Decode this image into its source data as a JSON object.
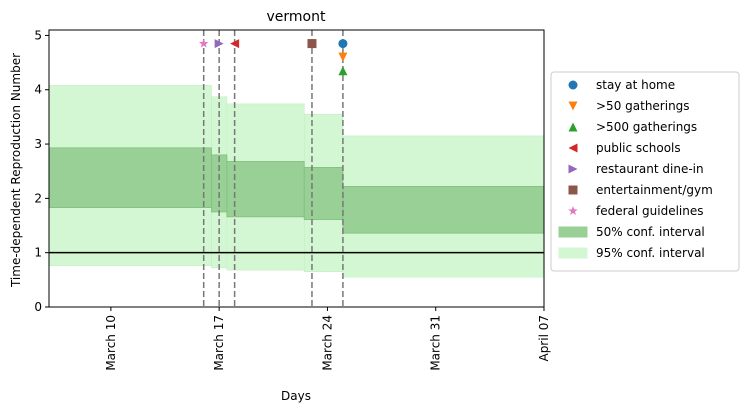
{
  "chart_data": {
    "type": "area",
    "title": "vermont",
    "xlabel": "Days",
    "ylabel": "Time-dependent Reproduction Number",
    "x_ticks": [
      "2020-03-10",
      "2020-03-17",
      "2020-03-24",
      "2020-03-31",
      "2020-04-07"
    ],
    "x_tick_labels": [
      "March 10",
      "March 17",
      "March 24",
      "March 31",
      "April 07"
    ],
    "xlim": [
      "2020-03-06",
      "2020-04-07"
    ],
    "ylim": [
      0,
      5.1
    ],
    "y_ticks": [
      0,
      1,
      2,
      3,
      4,
      5
    ],
    "reference_line": 1,
    "grid": false,
    "legend_placement": "outside-right",
    "ci95": [
      {
        "x_start": "2020-03-06",
        "x_end": "2020-03-16.5",
        "low": 0.76,
        "high": 4.08
      },
      {
        "x_start": "2020-03-16.5",
        "x_end": "2020-03-17.5",
        "low": 0.72,
        "high": 3.87
      },
      {
        "x_start": "2020-03-17.5",
        "x_end": "2020-03-22.5",
        "low": 0.68,
        "high": 3.74
      },
      {
        "x_start": "2020-03-22.5",
        "x_end": "2020-03-25",
        "low": 0.65,
        "high": 3.55
      },
      {
        "x_start": "2020-03-25",
        "x_end": "2020-04-07",
        "low": 0.55,
        "high": 3.15
      }
    ],
    "ci50": [
      {
        "x_start": "2020-03-06",
        "x_end": "2020-03-16.5",
        "low": 1.83,
        "high": 2.93
      },
      {
        "x_start": "2020-03-16.5",
        "x_end": "2020-03-17.5",
        "low": 1.75,
        "high": 2.8
      },
      {
        "x_start": "2020-03-17.5",
        "x_end": "2020-03-22.5",
        "low": 1.66,
        "high": 2.68
      },
      {
        "x_start": "2020-03-22.5",
        "x_end": "2020-03-25",
        "low": 1.61,
        "high": 2.57
      },
      {
        "x_start": "2020-03-25",
        "x_end": "2020-04-07",
        "low": 1.36,
        "high": 2.22
      }
    ],
    "interventions": [
      {
        "name": "stay at home",
        "date": "2020-03-25",
        "y": 4.85,
        "marker": "circle",
        "color": "#1f77b4"
      },
      {
        "name": ">50 gatherings",
        "date": "2020-03-25",
        "y": 4.6,
        "marker": "triangle-down",
        "color": "#ff7f0e"
      },
      {
        "name": ">500 gatherings",
        "date": "2020-03-25",
        "y": 4.35,
        "marker": "triangle-up",
        "color": "#2ca02c"
      },
      {
        "name": "public schools",
        "date": "2020-03-18",
        "y": 4.85,
        "marker": "triangle-left",
        "color": "#d62728"
      },
      {
        "name": "restaurant dine-in",
        "date": "2020-03-17",
        "y": 4.85,
        "marker": "triangle-right",
        "color": "#9467bd"
      },
      {
        "name": "entertainment/gym",
        "date": "2020-03-23",
        "y": 4.85,
        "marker": "square",
        "color": "#8c564b"
      },
      {
        "name": "federal guidelines",
        "date": "2020-03-16",
        "y": 4.85,
        "marker": "star",
        "color": "#e377c2"
      }
    ],
    "vlines": [
      "2020-03-16",
      "2020-03-17",
      "2020-03-18",
      "2020-03-23",
      "2020-03-25"
    ],
    "legend": [
      {
        "label": "stay at home",
        "marker": "circle",
        "color": "#1f77b4"
      },
      {
        "label": ">50 gatherings",
        "marker": "triangle-down",
        "color": "#ff7f0e"
      },
      {
        "label": ">500 gatherings",
        "marker": "triangle-up",
        "color": "#2ca02c"
      },
      {
        "label": "public schools",
        "marker": "triangle-left",
        "color": "#d62728"
      },
      {
        "label": "restaurant dine-in",
        "marker": "triangle-right",
        "color": "#9467bd"
      },
      {
        "label": "entertainment/gym",
        "marker": "square",
        "color": "#8c564b"
      },
      {
        "label": "federal guidelines",
        "marker": "star",
        "color": "#e377c2"
      },
      {
        "label": "50% conf. interval",
        "marker": "patch",
        "color": "#98d095"
      },
      {
        "label": "95% conf. interval",
        "marker": "patch",
        "color": "#d4f7d3"
      }
    ],
    "colors": {
      "ci50_fill": "#98d095",
      "ci50_edge": "#7fc07c",
      "ci95_fill": "#d4f7d3",
      "ci95_edge": "#c2eec0",
      "vline": "#777777",
      "reference": "#000000"
    }
  }
}
